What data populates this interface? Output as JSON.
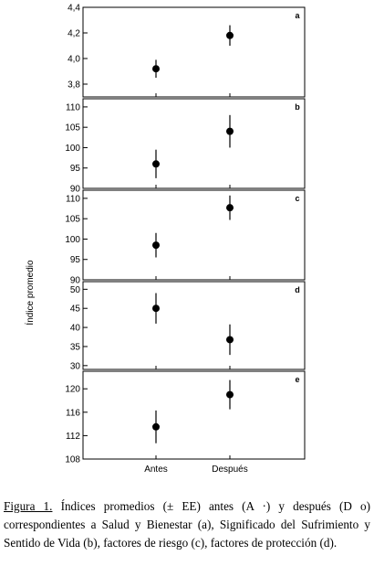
{
  "chart_data": {
    "type": "scatter",
    "ylabel": "Índice promedio",
    "categories": [
      "Antes",
      "Después"
    ],
    "panels": [
      {
        "letter": "a",
        "ylim": [
          3.7,
          4.4
        ],
        "ticks": [
          3.8,
          4.0,
          4.2,
          4.4
        ],
        "tick_labels": [
          "3,8",
          "4,0",
          "4,2",
          "4,4"
        ],
        "means": [
          3.92,
          4.18
        ],
        "errors": [
          0.07,
          0.08
        ]
      },
      {
        "letter": "b",
        "ylim": [
          90,
          112
        ],
        "ticks": [
          90,
          95,
          100,
          105,
          110
        ],
        "tick_labels": [
          "90",
          "95",
          "100",
          "105",
          "110"
        ],
        "means": [
          96.0,
          104.0
        ],
        "errors": [
          3.5,
          4.0
        ]
      },
      {
        "letter": "c",
        "ylim": [
          90,
          112
        ],
        "ticks": [
          90,
          95,
          100,
          105,
          110
        ],
        "tick_labels": [
          "90",
          "95",
          "100",
          "105",
          "110"
        ],
        "means": [
          98.5,
          107.7
        ],
        "errors": [
          3.0,
          3.0
        ]
      },
      {
        "letter": "d",
        "ylim": [
          29,
          52
        ],
        "ticks": [
          30,
          35,
          40,
          45,
          50
        ],
        "tick_labels": [
          "30",
          "35",
          "40",
          "45",
          "50"
        ],
        "means": [
          45.0,
          36.8
        ],
        "errors": [
          4.0,
          4.0
        ]
      },
      {
        "letter": "e",
        "ylim": [
          108,
          123
        ],
        "ticks": [
          108,
          112,
          116,
          120
        ],
        "tick_labels": [
          "108",
          "112",
          "116",
          "120"
        ],
        "means": [
          113.5,
          119.0
        ],
        "errors": [
          2.8,
          2.5
        ]
      }
    ]
  },
  "caption": {
    "label": "Figura 1.",
    "text": " Índices promedios (± EE) antes (A ·) y después (D o) correspondientes a Salud y Bienestar (a), Significado del Sufrimiento y Sentido de Vida (b), factores de riesgo (c), factores de protección (d)."
  }
}
